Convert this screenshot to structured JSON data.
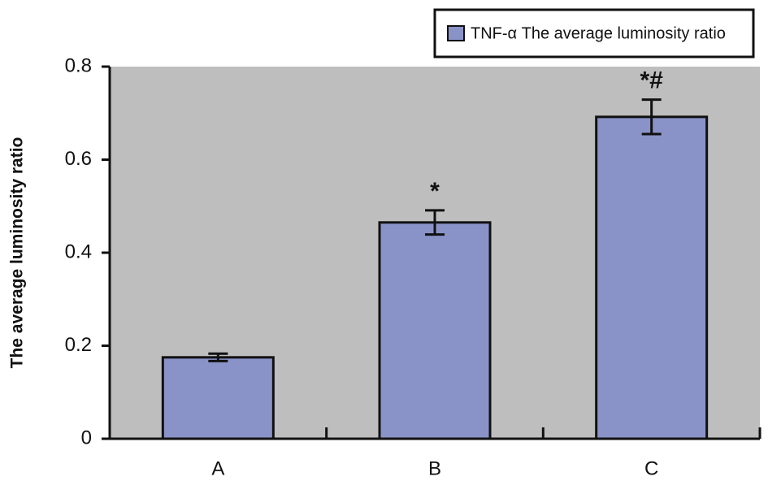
{
  "chart_data": {
    "type": "bar",
    "y_label": "The average luminosity ratio",
    "categories": [
      "A",
      "B",
      "C"
    ],
    "series": [
      {
        "name": "TNF-α The average luminosity ratio",
        "color": "#8a93c8",
        "values": [
          0.175,
          0.465,
          0.692
        ],
        "errors": [
          0.008,
          0.026,
          0.037
        ]
      }
    ],
    "annotations": [
      null,
      "*",
      "*#"
    ],
    "ylim": [
      0,
      0.8
    ],
    "yticks": [
      0,
      0.2,
      0.4,
      0.6,
      0.8
    ],
    "plot_background": "#bebebe",
    "legend": "top-right"
  }
}
